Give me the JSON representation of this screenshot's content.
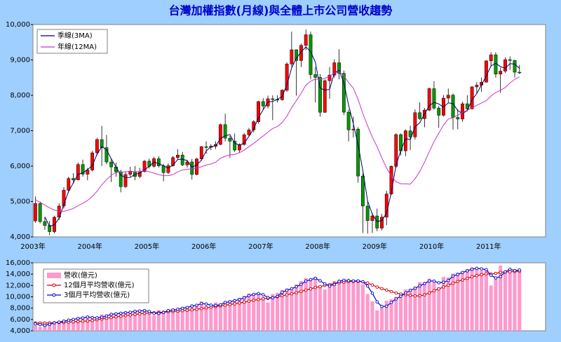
{
  "chart_data": [
    {
      "type": "candlestick",
      "title": "台灣加權指數(月線)與全體上市公司營收趨勢",
      "categories": [
        "2003年",
        null,
        null,
        null,
        null,
        null,
        null,
        null,
        null,
        null,
        null,
        null,
        "2004年",
        null,
        null,
        null,
        null,
        null,
        null,
        null,
        null,
        null,
        null,
        null,
        "2005年",
        null,
        null,
        null,
        null,
        null,
        null,
        null,
        null,
        null,
        null,
        null,
        "2006年",
        null,
        null,
        null,
        null,
        null,
        null,
        null,
        null,
        null,
        null,
        null,
        "2007年",
        null,
        null,
        null,
        null,
        null,
        null,
        null,
        null,
        null,
        null,
        null,
        "2008年",
        null,
        null,
        null,
        null,
        null,
        null,
        null,
        null,
        null,
        null,
        null,
        "2009年",
        null,
        null,
        null,
        null,
        null,
        null,
        null,
        null,
        null,
        null,
        null,
        "2010年",
        null,
        null,
        null,
        null,
        null,
        null,
        null,
        null,
        null,
        null,
        null,
        "2011年",
        null,
        null,
        null,
        null,
        null,
        null
      ],
      "open": [
        4452,
        4941,
        4432,
        4321,
        4148,
        4555,
        4872,
        5318,
        5650,
        5611,
        6045,
        5771,
        5890,
        6375,
        6750,
        6522,
        6117,
        5977,
        5840,
        5420,
        5765,
        5845,
        5706,
        5844,
        6140,
        5994,
        6208,
        6006,
        5818,
        6012,
        6241,
        6312,
        6033,
        6118,
        5764,
        6203,
        6548,
        6532,
        6562,
        6613,
        7171,
        6790,
        6704,
        6454,
        6611,
        6883,
        7021,
        7255,
        7823,
        7699,
        7902,
        7884,
        7875,
        8145,
        8884,
        9287,
        8982,
        9411,
        9711,
        8586,
        8506,
        7521,
        8413,
        8572,
        8920,
        8619,
        7524,
        7024,
        7046,
        5720,
        4871,
        4460,
        4591,
        4248,
        4557,
        5211,
        5993,
        6890,
        6432,
        6997,
        6826,
        7509,
        7340,
        7582,
        8188,
        7640,
        7436,
        7920,
        8004,
        7374,
        7329,
        7761,
        7616,
        8238,
        8287,
        8372,
        8973,
        9145,
        8600,
        8683,
        9007,
        8989,
        8653
      ],
      "high": [
        5141,
        5000,
        4560,
        4450,
        4600,
        4950,
        5400,
        5700,
        5800,
        6100,
        6180,
        5950,
        6430,
        6800,
        7135,
        6880,
        6200,
        6100,
        5900,
        5850,
        5980,
        6000,
        5950,
        6170,
        6210,
        6260,
        6280,
        6060,
        6080,
        6290,
        6480,
        6400,
        6180,
        6200,
        6230,
        6570,
        6700,
        6620,
        6700,
        7200,
        7480,
        6850,
        6920,
        6640,
        6930,
        7080,
        7300,
        7850,
        7920,
        7990,
        8000,
        8000,
        8170,
        8930,
        9800,
        9300,
        9460,
        9860,
        9800,
        8800,
        8600,
        8450,
        8800,
        9020,
        9300,
        8700,
        7600,
        7400,
        7100,
        5800,
        5000,
        4680,
        4800,
        4650,
        5300,
        6020,
        6930,
        6920,
        7040,
        7140,
        7600,
        7800,
        7640,
        8220,
        8400,
        7700,
        8010,
        8190,
        8050,
        7600,
        7820,
        8000,
        8260,
        8370,
        8500,
        8990,
        9220,
        9220,
        8780,
        9070,
        9100,
        9000,
        8860
      ],
      "low": [
        4400,
        4380,
        4200,
        4044,
        4100,
        4480,
        4800,
        5250,
        5500,
        5600,
        5700,
        5600,
        5850,
        6300,
        6000,
        6050,
        5550,
        5700,
        5260,
        5380,
        5700,
        5600,
        5660,
        5820,
        5930,
        5960,
        5960,
        5570,
        5780,
        5990,
        6190,
        6000,
        5960,
        5620,
        5740,
        6150,
        6350,
        6450,
        6480,
        6590,
        6700,
        6230,
        6400,
        6370,
        6580,
        6850,
        6950,
        7200,
        7600,
        7630,
        7300,
        7800,
        7850,
        8100,
        8800,
        7990,
        8800,
        9270,
        8450,
        7800,
        7400,
        7500,
        7900,
        8500,
        8450,
        7440,
        6700,
        6810,
        5530,
        4110,
        4090,
        4110,
        4160,
        4180,
        4330,
        5180,
        5950,
        6300,
        6280,
        6450,
        6750,
        7300,
        7100,
        7550,
        7600,
        7080,
        7400,
        7800,
        7030,
        7040,
        7250,
        7550,
        7600,
        8050,
        8100,
        8360,
        8800,
        8500,
        8070,
        8630,
        8720,
        8500,
        8600
      ],
      "close": [
        4941,
        4432,
        4321,
        4148,
        4555,
        4872,
        5318,
        5650,
        5611,
        6045,
        5771,
        5890,
        6375,
        6750,
        6522,
        6117,
        5977,
        5840,
        5420,
        5765,
        5845,
        5706,
        5844,
        6140,
        5994,
        6208,
        6006,
        5818,
        6012,
        6241,
        6312,
        6033,
        6118,
        5764,
        6203,
        6548,
        6532,
        6562,
        6613,
        7171,
        6790,
        6704,
        6454,
        6611,
        6883,
        7021,
        7255,
        7823,
        7699,
        7902,
        7884,
        7875,
        8145,
        8884,
        9287,
        8982,
        9411,
        9711,
        8586,
        8506,
        7521,
        8413,
        8572,
        8920,
        8619,
        7524,
        7024,
        7046,
        5720,
        4871,
        4460,
        4591,
        4248,
        4557,
        5211,
        5993,
        6890,
        6432,
        6997,
        6826,
        7509,
        7340,
        7582,
        8188,
        7640,
        7436,
        7920,
        8004,
        7374,
        7329,
        7761,
        7616,
        8238,
        8287,
        8372,
        8973,
        9145,
        8600,
        8683,
        9007,
        8989,
        8653,
        8644
      ],
      "up_color": "#ff0000",
      "down_color": "#009900",
      "series": [
        {
          "name": "季線(3MA)",
          "color": "#000066",
          "values": [
            null,
            null,
            4565,
            4300,
            4341,
            4525,
            4915,
            5280,
            5526,
            5769,
            5809,
            5902,
            6012,
            6338,
            6549,
            6463,
            6205,
            5978,
            5746,
            5675,
            5677,
            5772,
            5798,
            5897,
            5993,
            6114,
            6069,
            6011,
            5945,
            6024,
            6188,
            6195,
            6154,
            5972,
            6028,
            6172,
            6428,
            6547,
            6569,
            6782,
            6858,
            6888,
            6649,
            6590,
            6649,
            6838,
            7053,
            7366,
            7592,
            7808,
            7828,
            7887,
            7968,
            8301,
            8772,
            9051,
            9227,
            9368,
            9236,
            8934,
            8204,
            8147,
            8169,
            8635,
            8704,
            8354,
            7722,
            7198,
            6597,
            5879,
            5017,
            4641,
            4433,
            4465,
            4672,
            5254,
            6031,
            6438,
            6773,
            6752,
            7111,
            7225,
            7477,
            7703,
            7803,
            7755,
            7665,
            7787,
            7766,
            7569,
            7488,
            7569,
            7872,
            8047,
            8299,
            8544,
            8830,
            8906,
            8809,
            8763,
            8893,
            8883,
            8762
          ]
        },
        {
          "name": "年線(12MA)",
          "color": "#cc33cc",
          "values": [
            5050,
            4980,
            4900,
            4820,
            4760,
            4720,
            4720,
            4760,
            4800,
            4880,
            4950,
            5030,
            5140,
            5290,
            5470,
            5620,
            5740,
            5820,
            5830,
            5840,
            5860,
            5840,
            5850,
            5870,
            5840,
            5800,
            5760,
            5730,
            5730,
            5760,
            5840,
            5890,
            5910,
            5920,
            5950,
            5980,
            6030,
            6060,
            6110,
            6220,
            6280,
            6320,
            6330,
            6380,
            6450,
            6550,
            6640,
            6750,
            6850,
            6960,
            7060,
            7120,
            7230,
            7410,
            7650,
            7850,
            8060,
            8290,
            8400,
            8460,
            8440,
            8480,
            8540,
            8630,
            8670,
            8550,
            8360,
            8200,
            7890,
            7480,
            7140,
            6820,
            6550,
            6230,
            5950,
            5710,
            5560,
            5500,
            5500,
            5490,
            5640,
            5850,
            6110,
            6410,
            6690,
            6930,
            7160,
            7330,
            7370,
            7440,
            7510,
            7580,
            7640,
            7720,
            7780,
            7850,
            7980,
            8080,
            8140,
            8220,
            8350,
            8450,
            8520
          ]
        }
      ],
      "ylim": [
        4000,
        10000
      ],
      "yticks": [
        {
          "value": 4000,
          "label": "4,000"
        },
        {
          "value": 5000,
          "label": "5,000"
        },
        {
          "value": 6000,
          "label": "6,000"
        },
        {
          "value": 7000,
          "label": "7,000"
        },
        {
          "value": 8000,
          "label": "8,000"
        },
        {
          "value": 9000,
          "label": "9,000"
        },
        {
          "value": 10000,
          "label": "10,000"
        }
      ]
    },
    {
      "type": "combo",
      "series": [
        {
          "name": "營收(億元)",
          "kind": "bar",
          "color": "#ff99cc",
          "values": [
            4900,
            4700,
            5300,
            5400,
            5500,
            5700,
            5900,
            6000,
            6100,
            6400,
            6300,
            6600,
            6100,
            6200,
            6900,
            6800,
            7000,
            7200,
            7100,
            7300,
            7400,
            7600,
            7500,
            7600,
            6900,
            6700,
            7600,
            7400,
            7700,
            7900,
            7800,
            8200,
            8300,
            8600,
            8600,
            9200,
            8400,
            8000,
            9000,
            8800,
            9200,
            9400,
            9400,
            9800,
            10200,
            10600,
            10500,
            10600,
            10000,
            9000,
            10500,
            10700,
            11200,
            11500,
            11600,
            12200,
            12800,
            13300,
            13000,
            13500,
            12000,
            11300,
            12400,
            12800,
            13000,
            13000,
            12600,
            12800,
            13000,
            12200,
            10500,
            9200,
            7600,
            8100,
            9300,
            9600,
            10000,
            10700,
            11300,
            11400,
            11800,
            12600,
            12600,
            13200,
            12500,
            11700,
            13500,
            13400,
            14100,
            14300,
            14500,
            14900,
            15200,
            15000,
            14600,
            14800,
            12000,
            13200,
            15500,
            14500,
            14600,
            14800,
            14800
          ]
        },
        {
          "name": "12個月平均營收(億元)",
          "kind": "line",
          "color": "#cc0000",
          "values": [
            5400,
            5380,
            5380,
            5400,
            5420,
            5450,
            5480,
            5530,
            5580,
            5640,
            5700,
            5730,
            5830,
            5960,
            6090,
            6210,
            6340,
            6470,
            6570,
            6680,
            6790,
            6890,
            6990,
            7070,
            7140,
            7180,
            7240,
            7290,
            7350,
            7410,
            7470,
            7550,
            7620,
            7700,
            7790,
            7920,
            8050,
            8160,
            8280,
            8400,
            8520,
            8640,
            8770,
            8900,
            9060,
            9230,
            9390,
            9510,
            9640,
            9720,
            9850,
            10010,
            10180,
            10360,
            10540,
            10740,
            10960,
            11190,
            11400,
            11640,
            11800,
            11990,
            12150,
            12330,
            12480,
            12600,
            12680,
            12730,
            12740,
            12650,
            12440,
            12090,
            11720,
            11450,
            11190,
            10920,
            10670,
            10480,
            10370,
            10250,
            10150,
            10180,
            10350,
            10680,
            11090,
            11390,
            11740,
            12060,
            12400,
            12700,
            12970,
            13260,
            13540,
            13740,
            13910,
            14040,
            14000,
            14130,
            14300,
            14390,
            14430,
            14470,
            14500
          ]
        },
        {
          "name": "3個月平均營收(億元)",
          "kind": "line",
          "color": "#0000cc",
          "values": [
            5200,
            5100,
            4970,
            5130,
            5400,
            5530,
            5700,
            5870,
            6000,
            6170,
            6270,
            6430,
            6330,
            6300,
            6400,
            6630,
            6900,
            7000,
            7100,
            7200,
            7270,
            7430,
            7500,
            7570,
            7400,
            7070,
            7070,
            7230,
            7570,
            7670,
            7800,
            7970,
            8100,
            8370,
            8500,
            8800,
            8730,
            8530,
            8470,
            8600,
            9000,
            9130,
            9330,
            9530,
            9800,
            10200,
            10430,
            10570,
            10370,
            9870,
            9830,
            10070,
            10800,
            11130,
            11430,
            11770,
            12200,
            12770,
            13030,
            13270,
            12830,
            12270,
            11900,
            12170,
            12730,
            12930,
            12870,
            12800,
            12800,
            12670,
            11900,
            10630,
            9100,
            8300,
            8330,
            9000,
            9630,
            10100,
            10670,
            11130,
            11500,
            11930,
            12330,
            12800,
            12770,
            12470,
            12570,
            12870,
            13670,
            13930,
            14300,
            14570,
            14870,
            15030,
            14930,
            14800,
            13800,
            13330,
            13570,
            14400,
            14870,
            14630,
            14730
          ]
        }
      ],
      "ylim": [
        4000,
        16000
      ],
      "yticks": [
        {
          "value": 4000,
          "label": "4,000"
        },
        {
          "value": 6000,
          "label": "6,000"
        },
        {
          "value": 8000,
          "label": "8,000"
        },
        {
          "value": 10000,
          "label": "10,000"
        },
        {
          "value": 12000,
          "label": "12,000"
        },
        {
          "value": 14000,
          "label": "14,000"
        },
        {
          "value": 16000,
          "label": "16,000"
        }
      ]
    }
  ]
}
